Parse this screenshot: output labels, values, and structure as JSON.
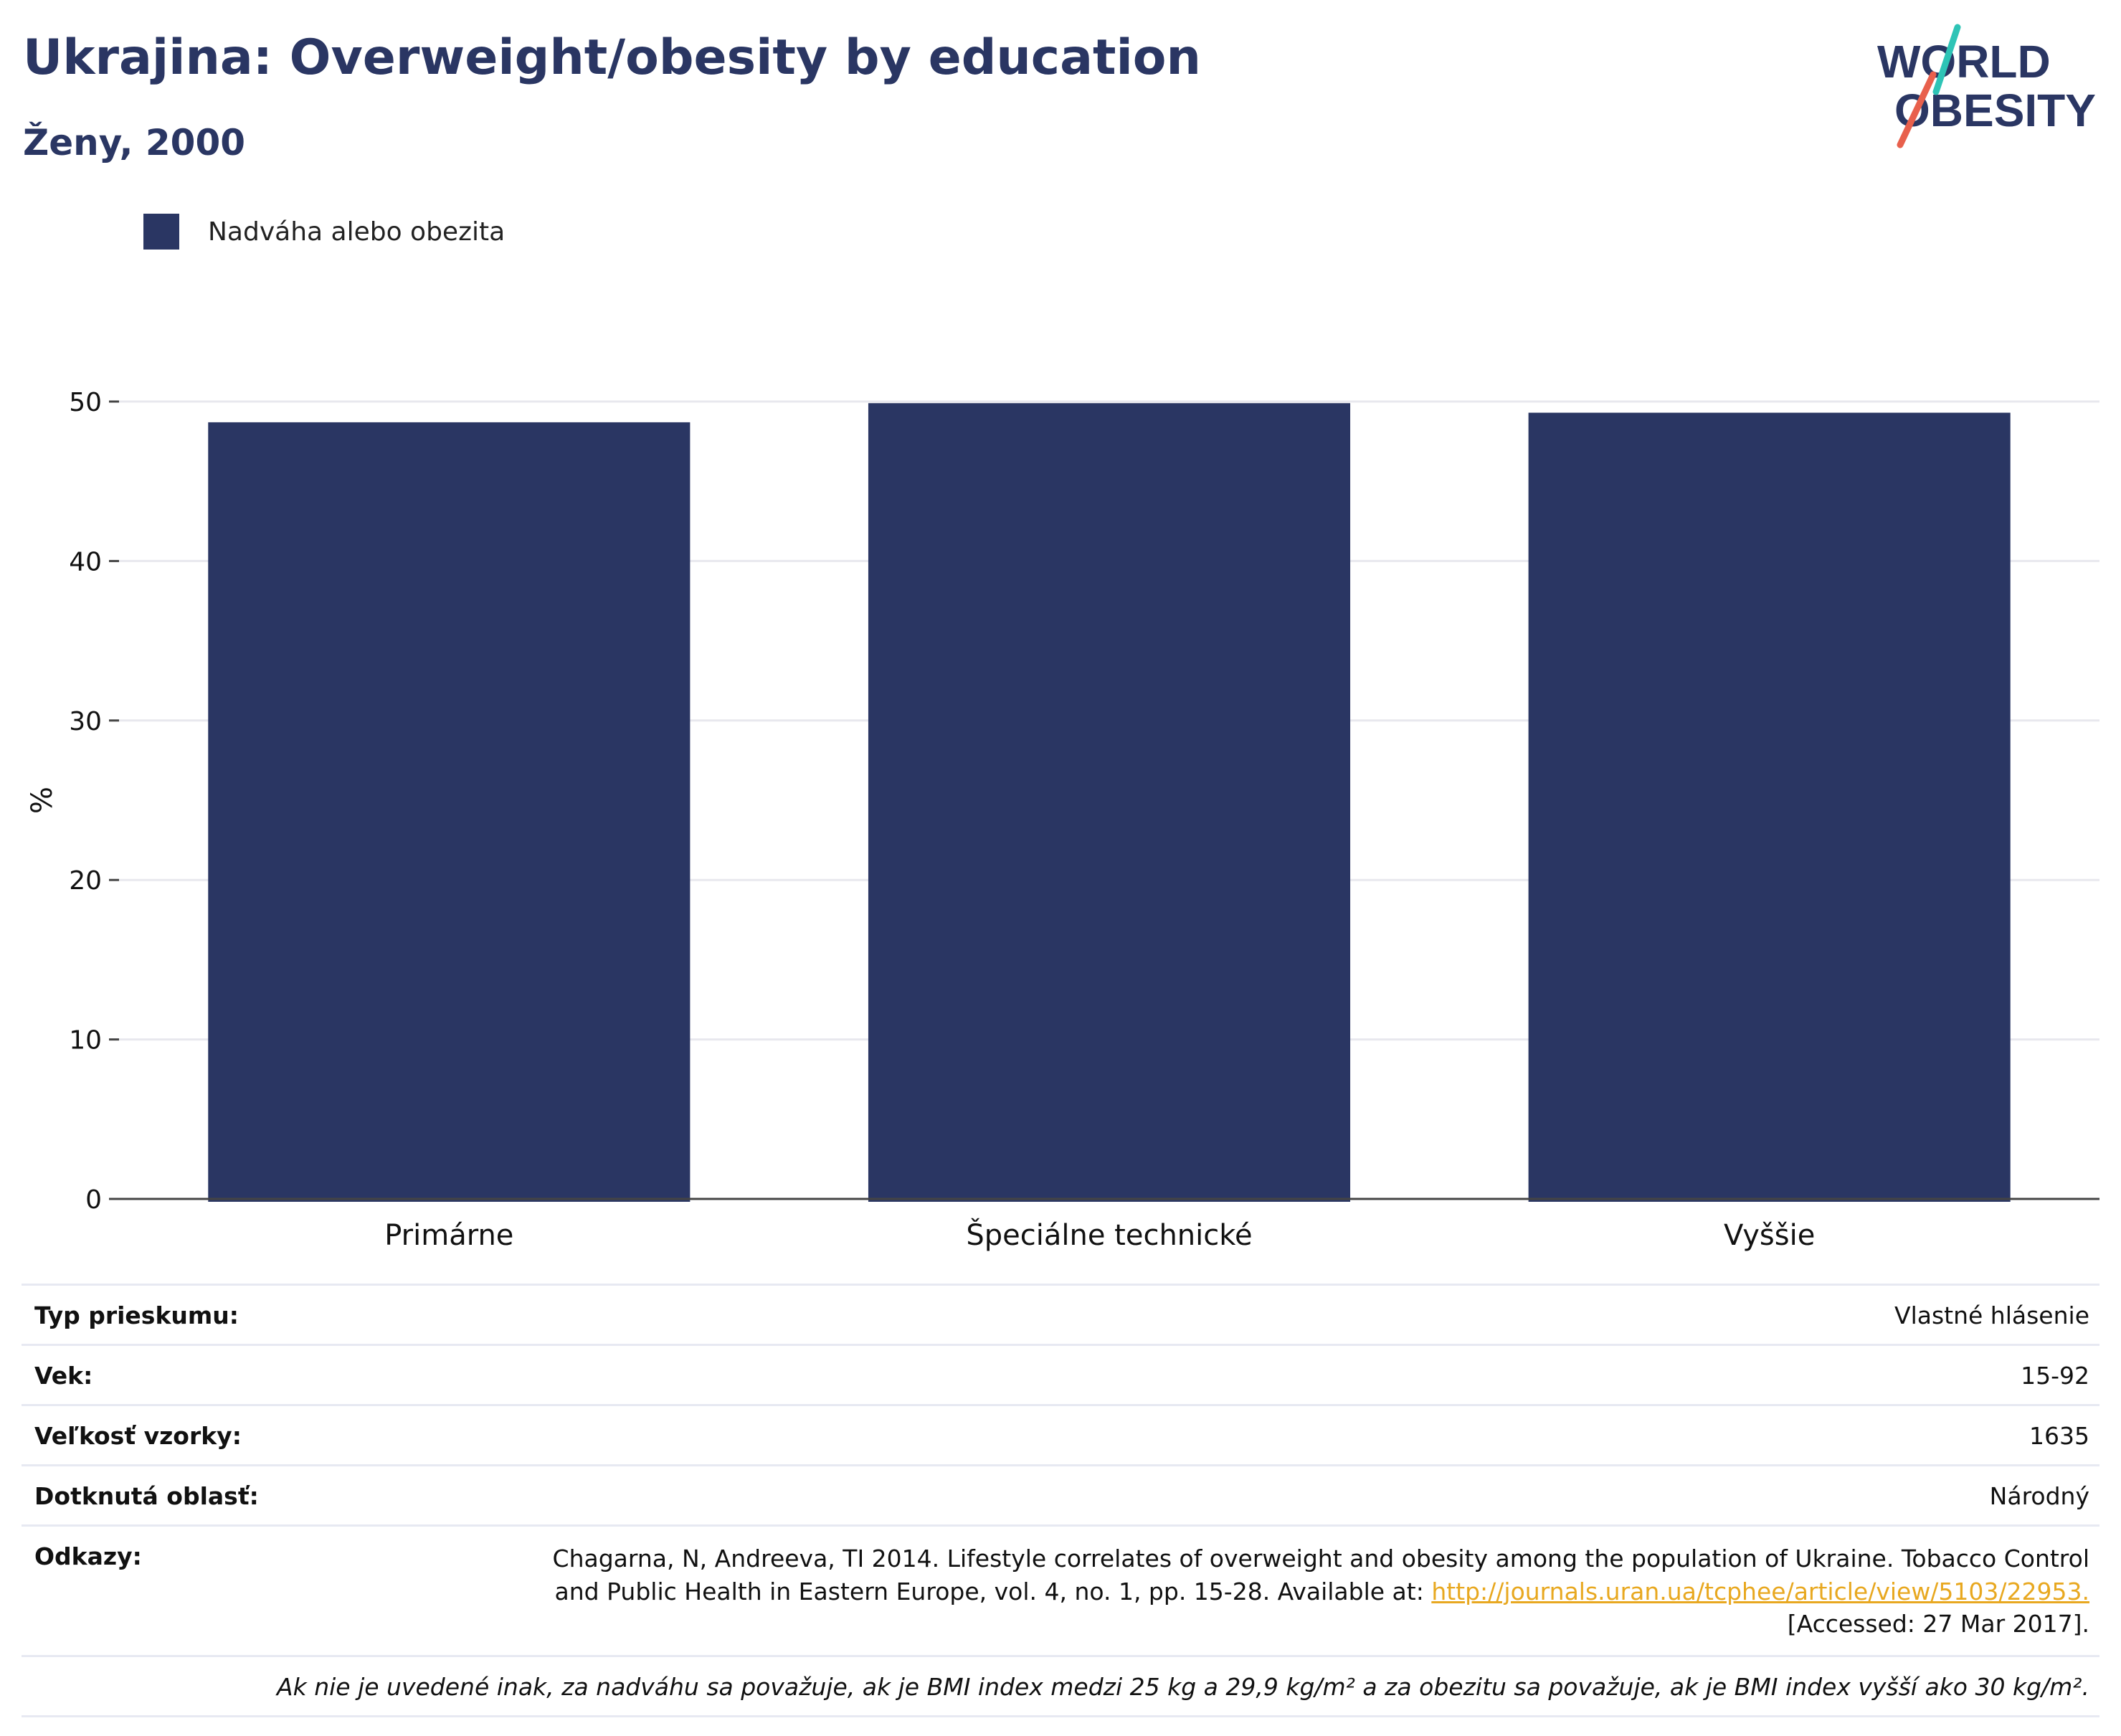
{
  "header": {
    "title": "Ukrajina: Overweight/obesity by education",
    "subtitle": "Ženy, 2000"
  },
  "logo": {
    "line1": "WORLD",
    "line2": "OBESITY",
    "colors": {
      "text": "#2a3663",
      "accent_teal": "#2ec4b6",
      "accent_coral": "#e8604c"
    }
  },
  "legend": {
    "label": "Nadváha alebo obezita",
    "color": "#2a3663"
  },
  "chart_data": {
    "type": "bar",
    "categories": [
      "Primárne",
      "Špeciálne technické",
      "Vyššie"
    ],
    "series": [
      {
        "name": "Nadváha alebo obezita",
        "values": [
          48.7,
          49.9,
          49.3
        ],
        "color": "#2a3663"
      }
    ],
    "ylabel": "%",
    "xlabel": "",
    "ylim": [
      0,
      50
    ],
    "yticks": [
      0,
      10,
      20,
      30,
      40,
      50
    ],
    "grid": true,
    "legend_position": "top-left"
  },
  "info": {
    "survey_type": {
      "label": "Typ prieskumu:",
      "value": "Vlastné hlásenie"
    },
    "age": {
      "label": "Vek:",
      "value": "15-92"
    },
    "sample_size": {
      "label": "Veľkosť vzorky:",
      "value": "1635"
    },
    "area": {
      "label": "Dotknutá oblasť:",
      "value": "Národný"
    },
    "references": {
      "label": "Odkazy:",
      "text_before": "Chagarna, N, Andreeva, TI 2014. Lifestyle correlates of overweight and obesity among the population of Ukraine. Tobacco Control and Public Health in Eastern Europe, vol. 4, no. 1, pp. 15-28. Available at: ",
      "link": "http://journals.uran.ua/tcphee/article/view/5103/22953.",
      "text_after": " [Accessed: 27 Mar 2017]."
    },
    "note": "Ak nie je uvedené inak, za nadváhu sa považuje, ak je BMI index medzi 25 kg a 29,9 kg/m² a za obezitu sa považuje, ak je BMI index vyšší ako 30 kg/m²."
  }
}
